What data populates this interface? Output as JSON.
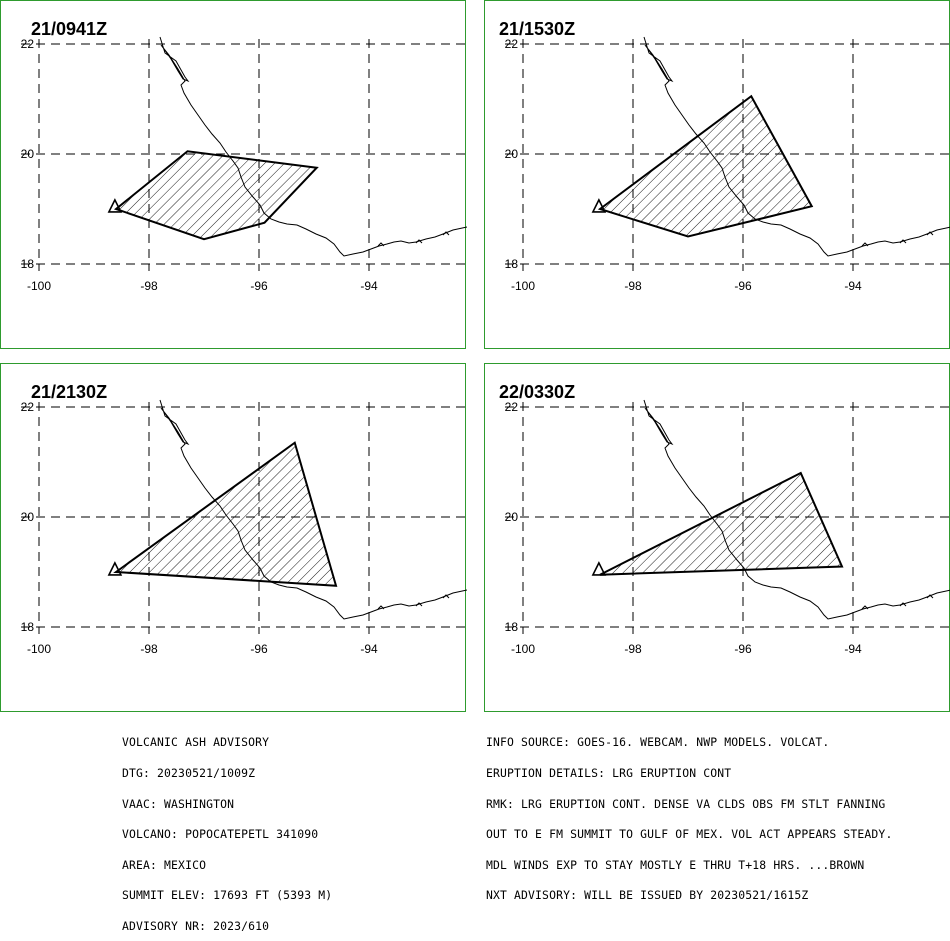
{
  "panels": [
    {
      "title": "21/0941Z",
      "polygon": [
        [
          -98.6,
          19.0
        ],
        [
          -97.3,
          20.05
        ],
        [
          -94.95,
          19.75
        ],
        [
          -95.9,
          18.75
        ],
        [
          -97.0,
          18.45
        ]
      ]
    },
    {
      "title": "21/1530Z",
      "polygon": [
        [
          -98.6,
          19.0
        ],
        [
          -95.85,
          21.05
        ],
        [
          -94.75,
          19.05
        ],
        [
          -97.0,
          18.5
        ]
      ]
    },
    {
      "title": "21/2130Z",
      "polygon": [
        [
          -98.6,
          19.0
        ],
        [
          -95.35,
          21.35
        ],
        [
          -94.6,
          18.75
        ]
      ]
    },
    {
      "title": "22/0330Z",
      "polygon": [
        [
          -98.6,
          18.95
        ],
        [
          -94.95,
          20.8
        ],
        [
          -94.2,
          19.1
        ]
      ]
    }
  ],
  "axes": {
    "lon_ticks": [
      -100,
      -98,
      -96,
      -94
    ],
    "lat_ticks": [
      18,
      20,
      22
    ],
    "lon_labels": [
      "-100",
      "-98",
      "-96",
      "-94"
    ],
    "lat_labels": [
      "18",
      "20",
      "22"
    ]
  },
  "volcano_marker": {
    "lon": -98.62,
    "lat": 19.02,
    "symbol": "triangle"
  },
  "colors": {
    "border": "#2e9b2e",
    "coast": "#000000",
    "polygon": "#000000",
    "grid": "#000000"
  },
  "advisory_left": [
    "VOLCANIC ASH ADVISORY",
    "DTG: 20230521/1009Z",
    "VAAC: WASHINGTON",
    "VOLCANO: POPOCATEPETL 341090",
    "AREA: MEXICO",
    "SUMMIT ELEV: 17693 FT (5393 M)",
    "ADVISORY NR: 2023/610"
  ],
  "advisory_right": [
    "INFO SOURCE: GOES-16. WEBCAM. NWP MODELS. VOLCAT.",
    "ERUPTION DETAILS: LRG ERUPTION CONT",
    "RMK: LRG ERUPTION CONT. DENSE VA CLDS OBS FM STLT FANNING",
    "OUT TO E FM SUMMIT TO GULF OF MEX. VOL ACT APPEARS STEADY.",
    "MDL WINDS EXP TO STAY MOSTLY E THRU T+18 HRS. ...BROWN",
    "NXT ADVISORY: WILL BE ISSUED BY 20230521/1615Z"
  ]
}
